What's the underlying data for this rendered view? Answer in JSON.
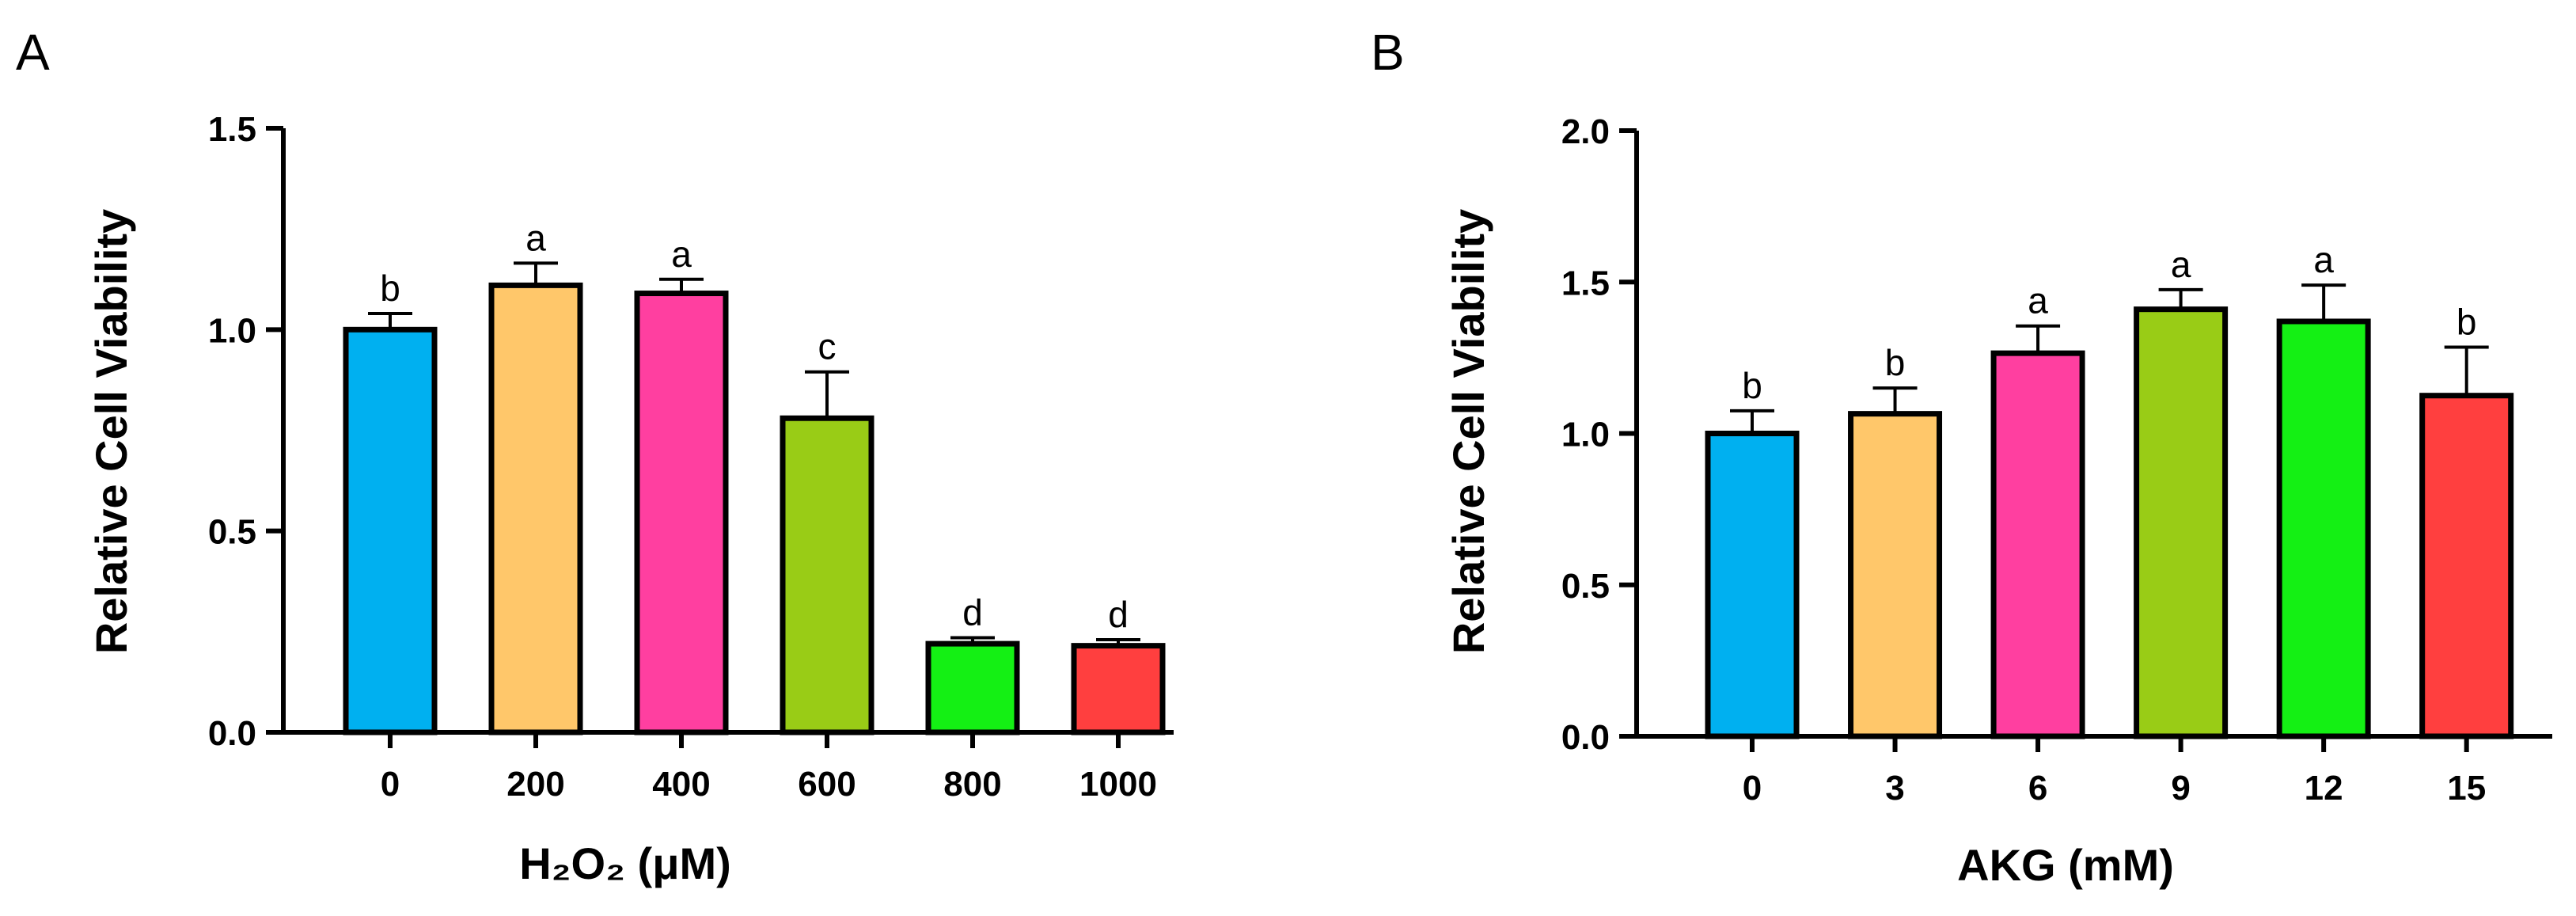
{
  "chart_data": [
    {
      "panel": "A",
      "type": "bar",
      "title": "",
      "ylabel": "Relative Cell Viability",
      "xlabel": "H₂O₂ (μM)",
      "categories": [
        "0",
        "200",
        "400",
        "600",
        "800",
        "1000"
      ],
      "values": [
        1.0,
        1.11,
        1.09,
        0.78,
        0.22,
        0.215
      ],
      "errors": [
        0.04,
        0.055,
        0.035,
        0.115,
        0.015,
        0.015
      ],
      "significance": [
        "b",
        "a",
        "a",
        "c",
        "d",
        "d"
      ],
      "colors": [
        "#00b0f0",
        "#ffc76a",
        "#ff3fa0",
        "#99cc16",
        "#14f014",
        "#ff3f3f"
      ],
      "ylim": [
        0,
        1.5
      ],
      "yticks": [
        0.0,
        0.5,
        1.0,
        1.5
      ],
      "ytick_labels": [
        "0.0",
        "0.5",
        "1.0",
        "1.5"
      ]
    },
    {
      "panel": "B",
      "type": "bar",
      "title": "",
      "ylabel": "Relative Cell Viability",
      "xlabel": "AKG (mM)",
      "categories": [
        "0",
        "3",
        "6",
        "9",
        "12",
        "15"
      ],
      "values": [
        1.0,
        1.065,
        1.265,
        1.41,
        1.37,
        1.125
      ],
      "errors": [
        0.075,
        0.085,
        0.09,
        0.065,
        0.12,
        0.16
      ],
      "significance": [
        "b",
        "b",
        "a",
        "a",
        "a",
        "b"
      ],
      "colors": [
        "#00b0f0",
        "#ffc76a",
        "#ff3fa0",
        "#99cc16",
        "#14f014",
        "#ff3f3f"
      ],
      "ylim": [
        0,
        2.0
      ],
      "yticks": [
        0.0,
        0.5,
        1.0,
        1.5,
        2.0
      ],
      "ytick_labels": [
        "0.0",
        "0.5",
        "1.0",
        "1.5",
        "2.0"
      ]
    }
  ]
}
